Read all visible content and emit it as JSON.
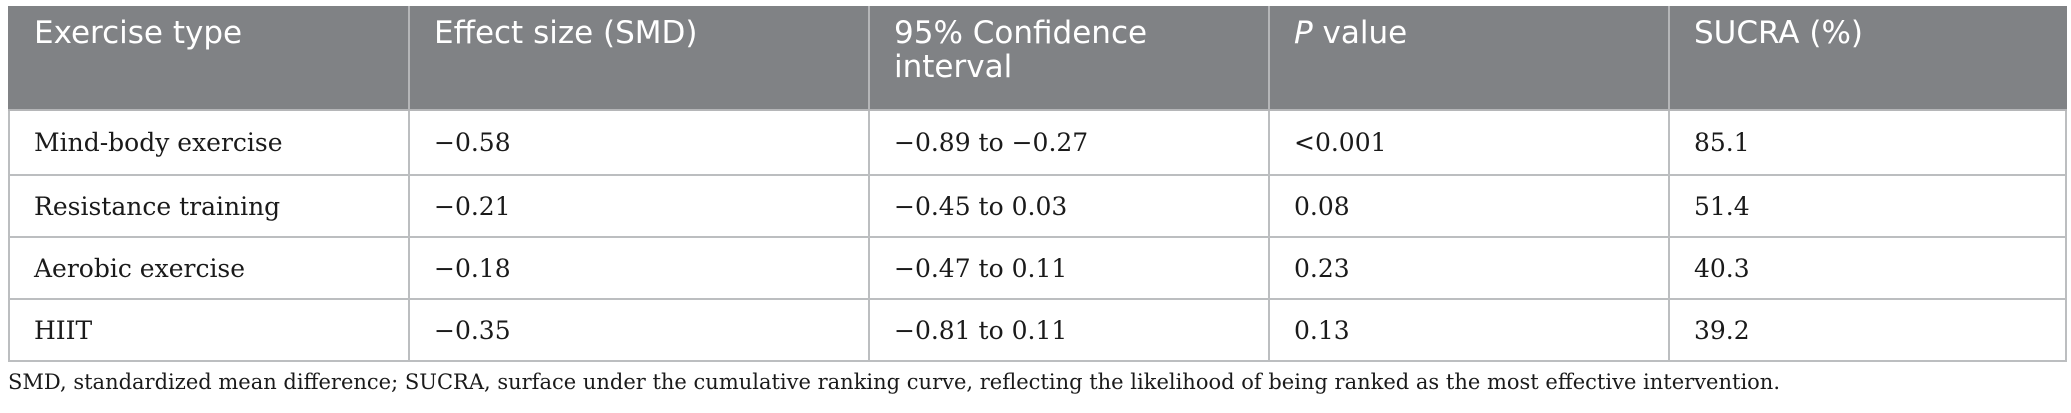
{
  "table": {
    "headers": {
      "exercise_type": "Exercise type",
      "effect_size": "Effect size (SMD)",
      "ci": "95% Confidence interval",
      "p_italic": "P",
      "p_rest": " value",
      "sucra": "SUCRA (%)"
    },
    "rows": [
      {
        "exercise": "Mind-body exercise",
        "smd": "−0.58",
        "ci": "−0.89 to −0.27",
        "p": "<0.001",
        "sucra": "85.1"
      },
      {
        "exercise": "Resistance training",
        "smd": "−0.21",
        "ci": "−0.45 to 0.03",
        "p": "0.08",
        "sucra": "51.4"
      },
      {
        "exercise": "Aerobic exercise",
        "smd": "−0.18",
        "ci": "−0.47 to 0.11",
        "p": "0.23",
        "sucra": "40.3"
      },
      {
        "exercise": "HIIT",
        "smd": "−0.35",
        "ci": "−0.81 to 0.11",
        "p": "0.13",
        "sucra": "39.2"
      }
    ]
  },
  "footnote": "SMD, standardized mean difference; SUCRA, surface under the cumulative ranking curve, reflecting the likelihood of being ranked as the most effective intervention.",
  "colors": {
    "header_bg": "#808285",
    "header_text": "#ffffff",
    "grid": "#bcbec0"
  }
}
